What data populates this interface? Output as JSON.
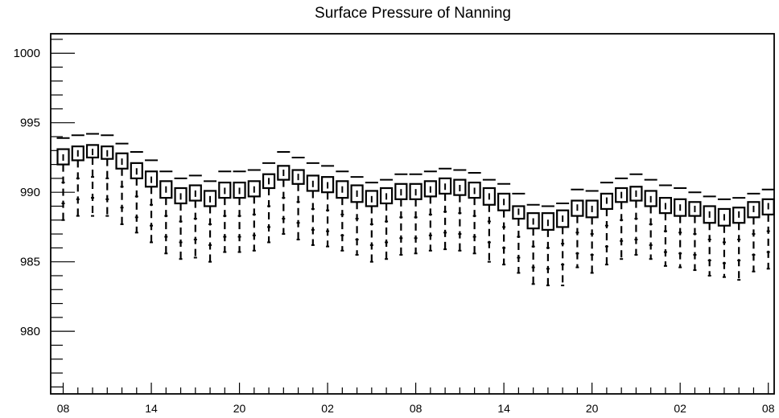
{
  "chart_data": {
    "type": "boxplot",
    "title": "Surface Pressure of Nanning",
    "xlabel": "",
    "ylabel": "",
    "ylim": [
      975.5,
      1001.4
    ],
    "yticks": [
      980,
      985,
      990,
      995,
      1000
    ],
    "ytick_labels": [
      "980",
      "985",
      "990",
      "995",
      "1000"
    ],
    "xlim": [
      7.15,
      56.4
    ],
    "xticks": [
      8,
      14,
      20,
      26,
      32,
      38,
      44,
      50,
      56
    ],
    "xtick_labels": [
      "08",
      "14",
      "20",
      "02",
      "08",
      "14",
      "20",
      "02",
      "08"
    ],
    "grid": false,
    "series": [
      {
        "x": [
          8,
          9,
          10,
          11,
          12,
          13,
          14,
          15,
          16,
          17,
          18,
          19,
          20,
          21,
          22,
          23,
          24,
          25,
          26,
          27,
          28,
          29,
          30,
          31,
          32,
          33,
          34,
          35,
          36,
          37,
          38,
          39,
          40,
          41,
          42,
          43,
          44,
          45,
          46,
          47,
          48,
          49,
          50,
          51,
          52,
          53,
          54,
          55,
          56
        ],
        "q3": [
          993.1,
          993.3,
          993.4,
          993.3,
          992.8,
          992.1,
          991.5,
          990.8,
          990.3,
          990.5,
          990.1,
          990.7,
          990.7,
          990.8,
          991.3,
          991.9,
          991.6,
          991.2,
          991.1,
          990.8,
          990.5,
          990.1,
          990.3,
          990.6,
          990.6,
          990.8,
          991.0,
          990.9,
          990.7,
          990.3,
          989.9,
          989.0,
          988.5,
          988.5,
          988.7,
          989.4,
          989.4,
          989.9,
          990.3,
          990.4,
          990.1,
          989.6,
          989.5,
          989.3,
          989.0,
          988.8,
          988.9,
          989.3,
          989.5
        ],
        "median": [
          992.5,
          992.8,
          992.9,
          992.8,
          992.2,
          991.5,
          990.9,
          990.2,
          989.7,
          989.9,
          989.5,
          990.1,
          990.1,
          990.2,
          990.8,
          991.4,
          991.1,
          990.6,
          990.5,
          990.2,
          989.9,
          989.5,
          989.7,
          990.0,
          990.0,
          990.2,
          990.4,
          990.3,
          990.1,
          989.7,
          989.3,
          988.6,
          987.9,
          987.8,
          988.1,
          988.9,
          988.8,
          989.4,
          989.8,
          989.9,
          989.5,
          989.0,
          988.9,
          988.8,
          988.4,
          988.2,
          988.4,
          988.8,
          989.0
        ],
        "q1": [
          992.0,
          992.3,
          992.5,
          992.4,
          991.7,
          991.0,
          990.4,
          989.6,
          989.2,
          989.4,
          989.0,
          989.6,
          989.6,
          989.7,
          990.3,
          990.9,
          990.6,
          990.1,
          990.0,
          989.6,
          989.3,
          989.0,
          989.2,
          989.5,
          989.5,
          989.7,
          989.9,
          989.8,
          989.6,
          989.1,
          988.7,
          988.1,
          987.4,
          987.3,
          987.5,
          988.3,
          988.2,
          988.8,
          989.3,
          989.4,
          989.0,
          988.5,
          988.3,
          988.3,
          987.8,
          987.6,
          987.8,
          988.2,
          988.4
        ],
        "upper": [
          993.9,
          994.1,
          994.2,
          994.1,
          993.5,
          992.9,
          992.3,
          991.5,
          991.0,
          991.2,
          990.8,
          991.5,
          991.5,
          991.6,
          992.1,
          992.9,
          992.5,
          992.1,
          991.9,
          991.5,
          991.1,
          990.7,
          990.9,
          991.3,
          991.3,
          991.5,
          991.7,
          991.6,
          991.4,
          990.9,
          990.6,
          989.9,
          989.1,
          989.0,
          989.2,
          990.2,
          990.1,
          990.7,
          991.0,
          991.3,
          990.9,
          990.5,
          990.3,
          990.0,
          989.7,
          989.5,
          989.6,
          989.9,
          990.2
        ],
        "lower": [
          988.0,
          988.3,
          988.3,
          988.3,
          987.7,
          987.1,
          986.4,
          985.6,
          985.2,
          985.3,
          985.0,
          985.7,
          985.7,
          985.8,
          986.4,
          987.0,
          986.6,
          986.2,
          986.1,
          985.8,
          985.5,
          985.0,
          985.2,
          985.5,
          985.6,
          985.8,
          985.9,
          985.8,
          985.6,
          985.0,
          984.8,
          984.2,
          983.4,
          983.3,
          983.3,
          984.6,
          984.2,
          984.8,
          985.2,
          985.5,
          985.2,
          984.7,
          984.6,
          984.4,
          984.0,
          983.9,
          983.7,
          984.3,
          984.5
        ],
        "whisker_top": [
          990.7,
          991.0,
          991.1,
          991.0,
          990.4,
          989.7,
          989.1,
          988.3,
          987.9,
          988.1,
          987.7,
          988.3,
          988.3,
          988.4,
          989.0,
          989.6,
          989.3,
          988.8,
          988.7,
          988.4,
          988.1,
          987.7,
          987.9,
          988.2,
          988.2,
          988.4,
          988.6,
          988.5,
          988.3,
          987.9,
          987.5,
          986.8,
          986.1,
          986.0,
          986.3,
          987.1,
          987.0,
          987.6,
          988.0,
          988.1,
          987.7,
          987.2,
          987.1,
          987.0,
          986.6,
          986.4,
          986.6,
          987.0,
          987.2
        ],
        "whisker_bottom": [
          989.2,
          989.5,
          989.6,
          989.5,
          988.9,
          988.2,
          987.6,
          986.8,
          986.4,
          986.6,
          986.2,
          986.8,
          986.8,
          986.9,
          987.5,
          988.1,
          987.8,
          987.3,
          987.2,
          986.9,
          986.6,
          986.2,
          986.4,
          986.7,
          986.7,
          986.9,
          987.1,
          987.0,
          986.8,
          986.4,
          986.0,
          985.3,
          984.6,
          984.5,
          984.8,
          985.6,
          985.5,
          986.1,
          986.5,
          986.6,
          986.2,
          985.7,
          985.6,
          985.5,
          985.1,
          984.9,
          985.1,
          985.5,
          985.7
        ]
      }
    ]
  }
}
